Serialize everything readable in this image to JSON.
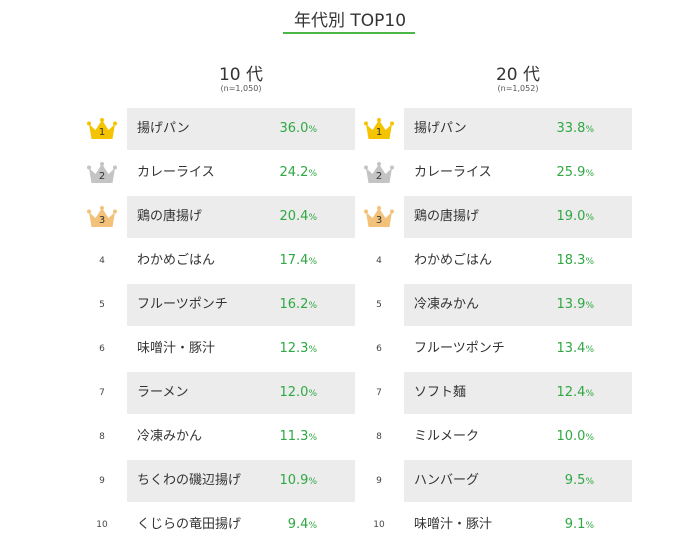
{
  "title": "年代別 TOP10",
  "colors": {
    "accent": "#4cb648",
    "value": "#2fa843",
    "gold": "#f5c400",
    "silver": "#c4c4c4",
    "bronze": "#f2c27a",
    "shade": "#ececec"
  },
  "chart_data": {
    "type": "table",
    "title": "年代別 TOP10",
    "unit": "%",
    "columns": [
      {
        "label": "10 代",
        "sample": "(n=1,050)",
        "rows": [
          {
            "rank": "1",
            "item": "揚げパン",
            "value": "36.0"
          },
          {
            "rank": "2",
            "item": "カレーライス",
            "value": "24.2"
          },
          {
            "rank": "3",
            "item": "鶏の唐揚げ",
            "value": "20.4"
          },
          {
            "rank": "4",
            "item": "わかめごはん",
            "value": "17.4"
          },
          {
            "rank": "5",
            "item": "フルーツポンチ",
            "value": "16.2"
          },
          {
            "rank": "6",
            "item": "味噌汁・豚汁",
            "value": "12.3"
          },
          {
            "rank": "7",
            "item": "ラーメン",
            "value": "12.0"
          },
          {
            "rank": "8",
            "item": "冷凍みかん",
            "value": "11.3"
          },
          {
            "rank": "9",
            "item": "ちくわの磯辺揚げ",
            "value": "10.9"
          },
          {
            "rank": "10",
            "item": "くじらの竜田揚げ",
            "value": "9.4"
          }
        ]
      },
      {
        "label": "20 代",
        "sample": "(n=1,052)",
        "rows": [
          {
            "rank": "1",
            "item": "揚げパン",
            "value": "33.8"
          },
          {
            "rank": "2",
            "item": "カレーライス",
            "value": "25.9"
          },
          {
            "rank": "3",
            "item": "鶏の唐揚げ",
            "value": "19.0"
          },
          {
            "rank": "4",
            "item": "わかめごはん",
            "value": "18.3"
          },
          {
            "rank": "5",
            "item": "冷凍みかん",
            "value": "13.9"
          },
          {
            "rank": "6",
            "item": "フルーツポンチ",
            "value": "13.4"
          },
          {
            "rank": "7",
            "item": "ソフト麺",
            "value": "12.4"
          },
          {
            "rank": "8",
            "item": "ミルメーク",
            "value": "10.0"
          },
          {
            "rank": "9",
            "item": "ハンバーグ",
            "value": "9.5"
          },
          {
            "rank": "10",
            "item": "味噌汁・豚汁",
            "value": "9.1"
          }
        ]
      }
    ]
  }
}
